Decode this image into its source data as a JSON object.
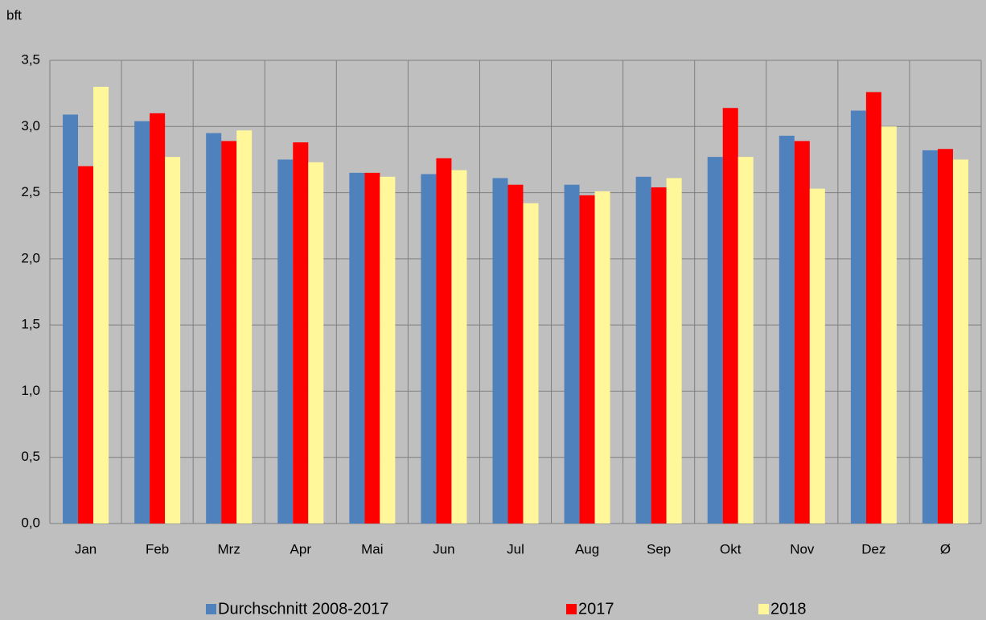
{
  "chart_data": {
    "type": "bar",
    "y_label": "bft",
    "categories": [
      "Jan",
      "Feb",
      "Mrz",
      "Apr",
      "Mai",
      "Jun",
      "Jul",
      "Aug",
      "Sep",
      "Okt",
      "Nov",
      "Dez",
      "Ø"
    ],
    "series": [
      {
        "name": "Durchschnitt 2008-2017",
        "color": "#4f81bd",
        "values": [
          3.09,
          3.04,
          2.95,
          2.75,
          2.65,
          2.64,
          2.61,
          2.56,
          2.62,
          2.77,
          2.93,
          3.12,
          2.82
        ]
      },
      {
        "name": "2017",
        "color": "#ff0000",
        "values": [
          2.7,
          3.1,
          2.89,
          2.88,
          2.65,
          2.76,
          2.56,
          2.48,
          2.54,
          3.14,
          2.89,
          3.26,
          2.83
        ]
      },
      {
        "name": "2018",
        "color": "#fff799",
        "values": [
          3.3,
          2.77,
          2.97,
          2.73,
          2.62,
          2.67,
          2.42,
          2.51,
          2.61,
          2.77,
          2.53,
          3.0,
          2.75
        ]
      }
    ],
    "ylim": [
      0,
      3.5
    ],
    "yticks": [
      {
        "value": 0,
        "label": "0,0"
      },
      {
        "value": 0.5,
        "label": "0,5"
      },
      {
        "value": 1,
        "label": "1,0"
      },
      {
        "value": 1.5,
        "label": "1,5"
      },
      {
        "value": 2,
        "label": "2,0"
      },
      {
        "value": 2.5,
        "label": "2,5"
      },
      {
        "value": 3,
        "label": "3,0"
      },
      {
        "value": 3.5,
        "label": "3,5"
      }
    ],
    "grid": true,
    "legend": "bottom"
  }
}
